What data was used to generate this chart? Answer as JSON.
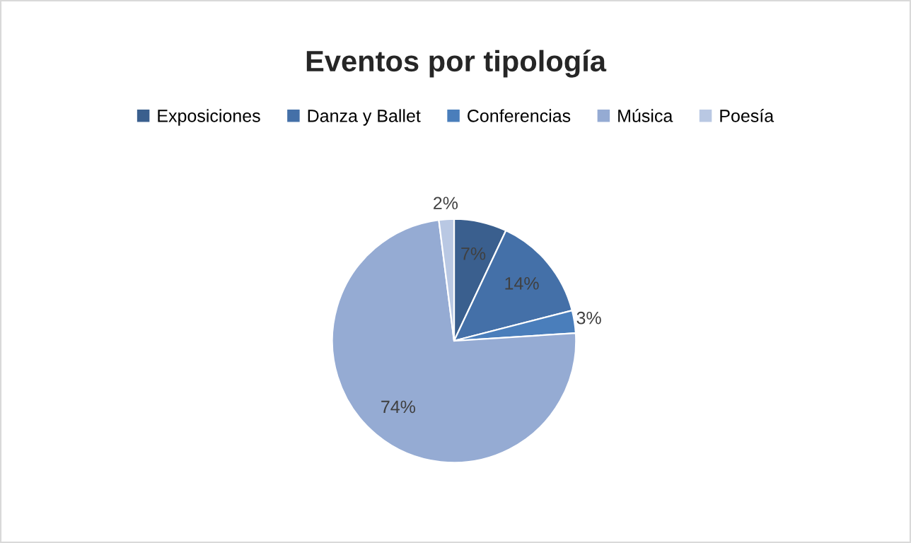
{
  "chart_data": {
    "type": "pie",
    "title": "Eventos por tipología",
    "categories": [
      "Exposiciones",
      "Danza y Ballet",
      "Conferencias",
      "Música",
      "Poesía"
    ],
    "values": [
      7,
      14,
      3,
      74,
      2
    ],
    "colors": [
      "#3a5f8e",
      "#4470a8",
      "#4a7ebb",
      "#95abd3",
      "#b9c8e3"
    ],
    "value_labels": [
      "7%",
      "14%",
      "3%",
      "74%",
      "2%"
    ],
    "legend": "top"
  }
}
